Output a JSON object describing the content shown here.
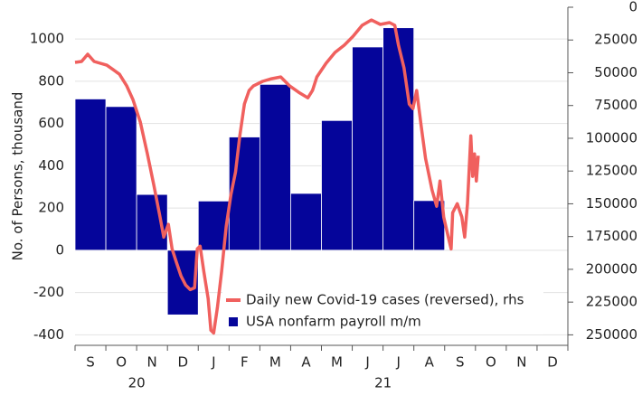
{
  "chart_data": {
    "type": "bar",
    "y_label": "No. of Persons, thousand",
    "categories": [
      "S",
      "O",
      "N",
      "D",
      "J",
      "F",
      "M",
      "A",
      "M",
      "J",
      "J",
      "A",
      "S",
      "O",
      "N",
      "D"
    ],
    "x_group_labels": [
      "20",
      "21"
    ],
    "xlim": [
      0,
      16
    ],
    "ylim": [
      -450,
      1150
    ],
    "yticks": [
      -400,
      -200,
      0,
      200,
      400,
      600,
      800,
      1000
    ],
    "y2lim": [
      258000,
      0
    ],
    "y2ticks": [
      0,
      25000,
      50000,
      75000,
      100000,
      125000,
      150000,
      175000,
      200000,
      225000,
      250000
    ],
    "grid": true,
    "legend": "bottom-center",
    "series": [
      {
        "name": "Daily new Covid-19 cases (reversed), rhs",
        "color": "#f0605e",
        "type": "line",
        "axis": "y2",
        "x": [
          0,
          0.21,
          0.41,
          0.62,
          0.82,
          1.03,
          1.24,
          1.44,
          1.68,
          1.88,
          2.12,
          2.35,
          2.56,
          2.76,
          2.88,
          3.03,
          3.15,
          3.29,
          3.44,
          3.59,
          3.74,
          3.88,
          3.97,
          4.06,
          4.18,
          4.32,
          4.41,
          4.5,
          4.62,
          4.76,
          4.91,
          5.06,
          5.21,
          5.35,
          5.5,
          5.65,
          5.79,
          6.09,
          6.38,
          6.68,
          6.97,
          7.26,
          7.56,
          7.71,
          7.85,
          8.15,
          8.44,
          8.74,
          9.03,
          9.32,
          9.62,
          9.91,
          10.21,
          10.38,
          10.5,
          10.68,
          10.85,
          10.97,
          11.09,
          11.24,
          11.38,
          11.59,
          11.74,
          11.85,
          11.97,
          12.12,
          12.21,
          12.26,
          12.41,
          12.56,
          12.65,
          12.74,
          12.85,
          12.91,
          12.97,
          13.03,
          13.09
        ],
        "values": [
          42100,
          41400,
          35900,
          41400,
          42800,
          44200,
          47700,
          51100,
          60100,
          70400,
          87700,
          111900,
          136000,
          160200,
          175400,
          165700,
          184400,
          194700,
          205100,
          212000,
          215500,
          214100,
          184400,
          182300,
          201600,
          222400,
          246500,
          248600,
          229300,
          201600,
          167100,
          143000,
          125700,
          98100,
          73900,
          63500,
          60100,
          56600,
          54600,
          53200,
          60100,
          64900,
          69100,
          63500,
          53200,
          42800,
          34500,
          29000,
          22100,
          13800,
          9700,
          13100,
          11700,
          13800,
          29000,
          46300,
          73900,
          77300,
          63500,
          91200,
          115300,
          139500,
          151900,
          132600,
          160200,
          175400,
          184400,
          156800,
          149900,
          160200,
          175400,
          149900,
          98100,
          129100,
          111900,
          132600,
          113300
        ]
      },
      {
        "name": "USA nonfarm payroll m/m",
        "color": "#05059a",
        "type": "bar",
        "values": [
          716,
          680,
          264,
          -306,
          233,
          536,
          785,
          269,
          614,
          962,
          1053,
          235,
          null,
          null,
          null,
          null
        ]
      }
    ]
  }
}
